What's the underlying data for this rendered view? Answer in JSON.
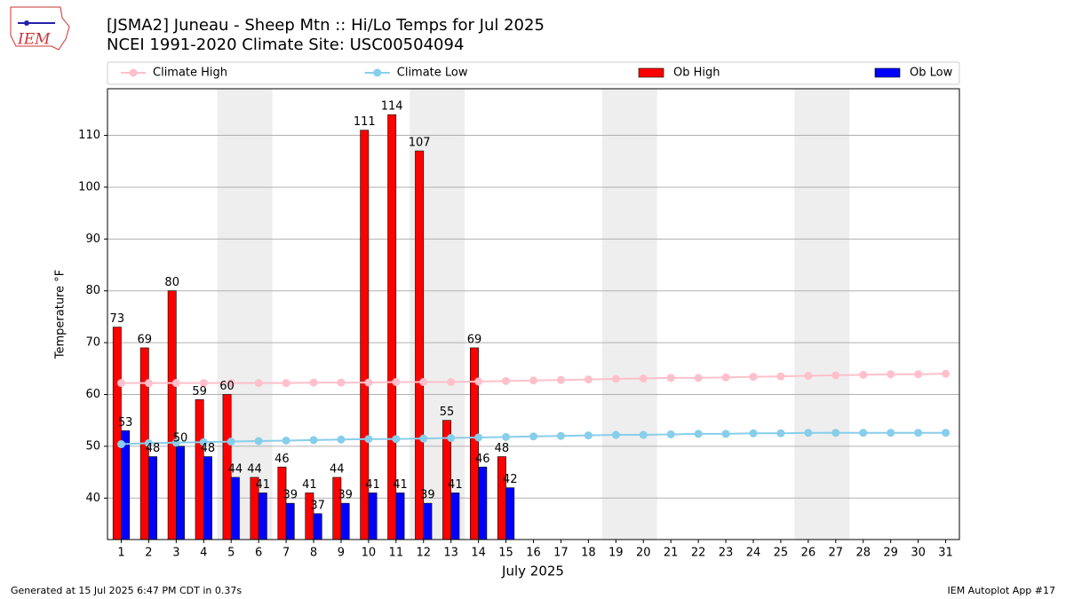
{
  "logo_text": "IEM",
  "footer_left": "Generated at 15 Jul 2025 6:47 PM CDT in 0.37s",
  "footer_right": "IEM Autoplot App #17",
  "chart_data": {
    "type": "bar",
    "title": "[JSMA2] Juneau - Sheep Mtn :: Hi/Lo Temps for Jul 2025",
    "subtitle": "NCEI 1991-2020 Climate Site: USC00504094",
    "xlabel": "July 2025",
    "ylabel": "Temperature °F",
    "x": [
      1,
      2,
      3,
      4,
      5,
      6,
      7,
      8,
      9,
      10,
      11,
      12,
      13,
      14,
      15,
      16,
      17,
      18,
      19,
      20,
      21,
      22,
      23,
      24,
      25,
      26,
      27,
      28,
      29,
      30,
      31
    ],
    "xlim": [
      0.5,
      31.5
    ],
    "ylim": [
      32,
      119
    ],
    "yticks": [
      40,
      50,
      60,
      70,
      80,
      90,
      100,
      110
    ],
    "grid": true,
    "shaded_spans": [
      [
        4.5,
        6.5
      ],
      [
        11.5,
        13.5
      ],
      [
        18.5,
        20.5
      ],
      [
        25.5,
        27.5
      ]
    ],
    "shade_color": "#eeeeee",
    "legend": "top",
    "series": [
      {
        "name": "Climate High",
        "type": "line",
        "color": "#ffc0cb",
        "values": [
          62.2,
          62.2,
          62.2,
          62.2,
          62.2,
          62.2,
          62.2,
          62.3,
          62.3,
          62.3,
          62.4,
          62.4,
          62.4,
          62.5,
          62.6,
          62.7,
          62.8,
          62.9,
          63.0,
          63.1,
          63.2,
          63.2,
          63.3,
          63.4,
          63.5,
          63.6,
          63.7,
          63.8,
          63.9,
          63.9,
          64.0
        ]
      },
      {
        "name": "Climate Low",
        "type": "line",
        "color": "#87ceeb",
        "values": [
          50.4,
          50.6,
          50.7,
          50.8,
          50.9,
          51.0,
          51.1,
          51.2,
          51.3,
          51.4,
          51.4,
          51.5,
          51.6,
          51.7,
          51.8,
          51.9,
          52.0,
          52.1,
          52.2,
          52.2,
          52.3,
          52.4,
          52.4,
          52.5,
          52.5,
          52.6,
          52.6,
          52.6,
          52.6,
          52.6,
          52.6
        ]
      },
      {
        "name": "Ob High",
        "type": "bar",
        "color": "#ff0000",
        "offset": -1,
        "values": [
          73,
          69,
          80,
          59,
          60,
          44,
          46,
          41,
          44,
          111,
          114,
          107,
          55,
          69,
          48,
          null,
          null,
          null,
          null,
          null,
          null,
          null,
          null,
          null,
          null,
          null,
          null,
          null,
          null,
          null,
          null
        ]
      },
      {
        "name": "Ob Low",
        "type": "bar",
        "color": "#0000ff",
        "offset": 1,
        "values": [
          53,
          48,
          50,
          48,
          44,
          41,
          39,
          37,
          39,
          41,
          41,
          39,
          41,
          46,
          42,
          null,
          null,
          null,
          null,
          null,
          null,
          null,
          null,
          null,
          null,
          null,
          null,
          null,
          null,
          null,
          null
        ]
      }
    ]
  }
}
